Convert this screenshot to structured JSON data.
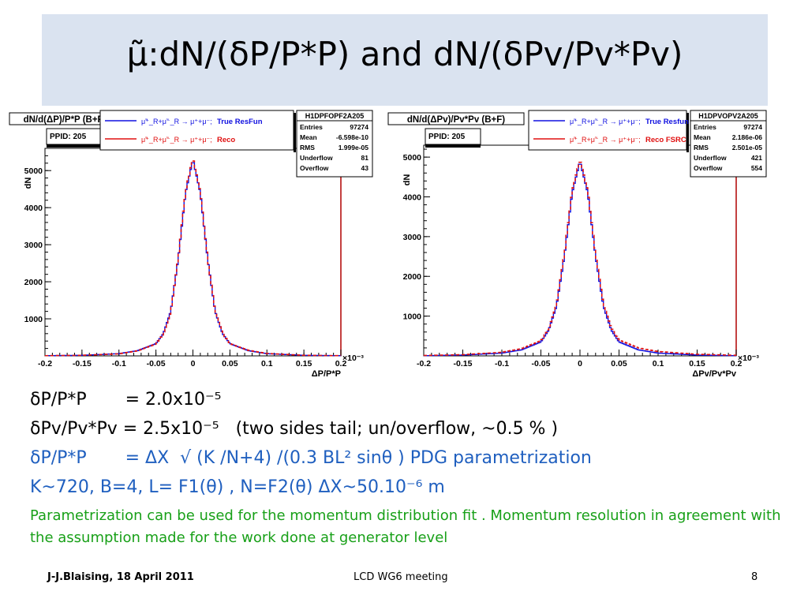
{
  "slide": {
    "title": "μ̃:dN/(δP/P*P) and dN/(δPv/Pv*Pv)",
    "lines": [
      "δP/P*P       = 2.0x10⁻⁵",
      "δPv/Pv*Pv = 2.5x10⁻⁵   (two sides tail; un/overflow, ~0.5 % )",
      "δP/P*P       = ΔX  √ (K /N+4) /(0.3 BL² sinθ ) PDG parametrization",
      "K~720, B=4, L= F1(θ) , N=F2(θ) ΔX~50.10⁻⁶ m"
    ],
    "note": "Parametrization can be used for the momentum distribution fit . Momentum resolution in agreement with the assumption  made for the work done at generator level",
    "footer_left": "J-J.Blaising, 18 April 2011",
    "footer_center": "LCD WG6 meeting",
    "footer_right": "8"
  },
  "colors": {
    "accent_blue": "#1f5fbf",
    "note_green": "#18a018",
    "title_band": "#dae3f0",
    "reco_red": "#e01010",
    "true_blue": "#1010e0"
  },
  "chart_data": [
    {
      "type": "line",
      "title": "dN/d(ΔP)/P*P (B+F)",
      "ylabel": "dN",
      "xlabel": "ΔP/P*P",
      "x_exponent": "×10⁻³",
      "ppid": "PPID: 205",
      "xlim": [
        -0.2,
        0.2
      ],
      "ylim": [
        0,
        5600
      ],
      "xticks": [
        "-0.2",
        "-0.15",
        "-0.1",
        "-0.05",
        "0",
        "0.05",
        "0.1",
        "0.15",
        "0.2"
      ],
      "yticks": [
        "1000",
        "2000",
        "3000",
        "4000",
        "5000"
      ],
      "legend": [
        {
          "prefix": "μ̃⁺_R+μ̃⁻_R → μ⁺+μ⁻;",
          "label": "True ResFun"
        },
        {
          "prefix": "μ̃⁺_R+μ̃⁻_R → μ⁺+μ⁻;",
          "label": "Reco"
        }
      ],
      "stats": {
        "name": "H1DPFOPF2A205",
        "rows": [
          [
            "Entries",
            "97274"
          ],
          [
            "Mean",
            "-6.598e-10"
          ],
          [
            "RMS",
            "1.999e-05"
          ],
          [
            "Underflow",
            "81"
          ],
          [
            "Overflow",
            "43"
          ]
        ]
      },
      "series": [
        {
          "name": "True ResFun",
          "x": [
            -0.2,
            -0.15,
            -0.1,
            -0.075,
            -0.05,
            -0.04,
            -0.03,
            -0.02,
            -0.01,
            0,
            0.01,
            0.02,
            0.03,
            0.04,
            0.05,
            0.075,
            0.1,
            0.15,
            0.2
          ],
          "values": [
            5,
            15,
            60,
            140,
            330,
            600,
            1200,
            2600,
            4400,
            5300,
            4400,
            2600,
            1200,
            600,
            330,
            140,
            60,
            15,
            5
          ]
        },
        {
          "name": "Reco",
          "x": [
            -0.2,
            -0.15,
            -0.1,
            -0.075,
            -0.05,
            -0.04,
            -0.03,
            -0.02,
            -0.01,
            0,
            0.01,
            0.02,
            0.03,
            0.04,
            0.05,
            0.075,
            0.1,
            0.15,
            0.2
          ],
          "values": [
            5,
            15,
            55,
            135,
            320,
            590,
            1180,
            2620,
            4450,
            5350,
            4420,
            2620,
            1200,
            610,
            330,
            150,
            65,
            15,
            5
          ]
        }
      ]
    },
    {
      "type": "line",
      "title": "dN/d(ΔPv)/Pv*Pv (B+F)",
      "ylabel": "dN",
      "xlabel": "ΔPv/Pv*Pv",
      "x_exponent": "×10⁻³",
      "ppid": "PPID: 205",
      "xlim": [
        -0.2,
        0.2
      ],
      "ylim": [
        0,
        5300
      ],
      "xticks": [
        "-0.2",
        "-0.15",
        "-0.1",
        "-0.05",
        "0",
        "0.05",
        "0.1",
        "0.15",
        "0.2"
      ],
      "yticks": [
        "1000",
        "2000",
        "3000",
        "4000",
        "5000"
      ],
      "legend": [
        {
          "prefix": "μ̃⁺_R+μ̃⁻_R → μ⁺+μ⁻;",
          "label": "True Resfun (V)"
        },
        {
          "prefix": "μ̃⁺_R+μ̃⁻_R → μ⁺+μ⁻;",
          "label": "Reco FSRC"
        }
      ],
      "stats": {
        "name": "H1DPVOPV2A205",
        "rows": [
          [
            "Entries",
            "97274"
          ],
          [
            "Mean",
            "2.186e-06"
          ],
          [
            "RMS",
            "2.501e-05"
          ],
          [
            "Underflow",
            "421"
          ],
          [
            "Overflow",
            "554"
          ]
        ]
      },
      "series": [
        {
          "name": "True Resfun (V)",
          "x": [
            -0.2,
            -0.15,
            -0.1,
            -0.075,
            -0.05,
            -0.04,
            -0.03,
            -0.02,
            -0.01,
            0,
            0.01,
            0.02,
            0.03,
            0.04,
            0.05,
            0.075,
            0.1,
            0.15,
            0.2
          ],
          "values": [
            5,
            20,
            70,
            150,
            350,
            650,
            1250,
            2500,
            4100,
            4900,
            4100,
            2500,
            1250,
            650,
            350,
            150,
            70,
            20,
            5
          ]
        },
        {
          "name": "Reco FSRC",
          "x": [
            -0.2,
            -0.15,
            -0.1,
            -0.075,
            -0.05,
            -0.04,
            -0.03,
            -0.02,
            -0.01,
            0,
            0.01,
            0.02,
            0.03,
            0.04,
            0.05,
            0.075,
            0.1,
            0.15,
            0.2
          ],
          "values": [
            10,
            30,
            90,
            180,
            380,
            680,
            1280,
            2550,
            4150,
            4950,
            4150,
            2550,
            1300,
            700,
            400,
            200,
            110,
            40,
            15
          ]
        }
      ]
    }
  ]
}
